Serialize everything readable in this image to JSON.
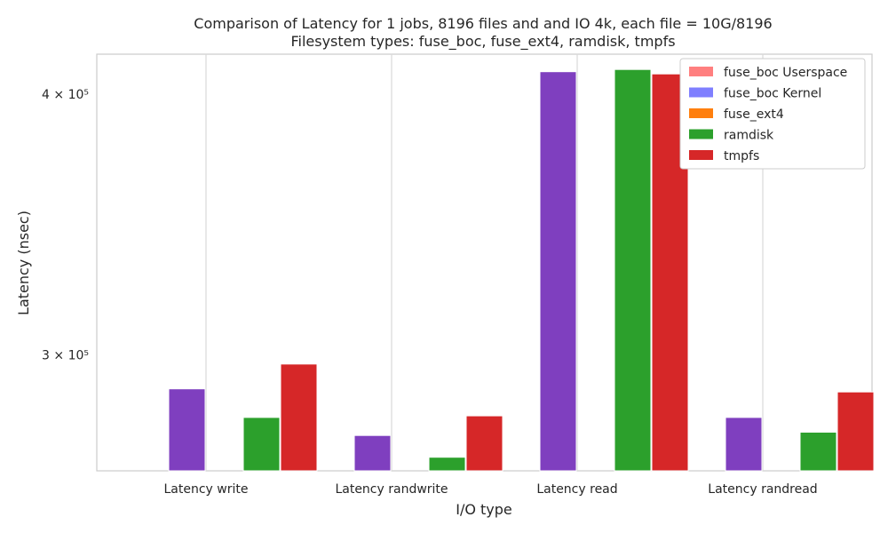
{
  "chart_data": {
    "type": "bar",
    "title": "Comparison of Latency for 1 jobs, 8196 files and  and IO 4k, each file = 10G/8196",
    "subtitle": "Filesystem types: fuse_boc, fuse_ext4, ramdisk, tmpfs",
    "xlabel": "I/O type",
    "ylabel": "Latency (nsec)",
    "yscale": "log",
    "ylim": [
      264000,
      418000
    ],
    "yticks": [
      {
        "value": 300000,
        "label": "3 × 10⁵"
      },
      {
        "value": 400000,
        "label": "4 × 10⁵"
      }
    ],
    "categories": [
      "Latency write",
      "Latency randwrite",
      "Latency read",
      "Latency randread"
    ],
    "series": [
      {
        "name": "fuse_boc Userspace",
        "color": "#ff7f7f",
        "values": [
          null,
          null,
          null,
          null
        ]
      },
      {
        "name": "fuse_boc Kernel",
        "color": "#7f7fff",
        "values": [
          null,
          null,
          null,
          null
        ]
      },
      {
        "name": "fuse_boc",
        "color": "#7f3fbf",
        "values": [
          289000,
          274500,
          410000,
          280000
        ]
      },
      {
        "name": "fuse_ext4",
        "color": "#ff7f0e",
        "values": [
          null,
          null,
          null,
          null
        ]
      },
      {
        "name": "ramdisk",
        "color": "#2ca02c",
        "values": [
          280000,
          268000,
          411000,
          275500
        ]
      },
      {
        "name": "tmpfs",
        "color": "#d62728",
        "values": [
          297000,
          280500,
          409000,
          288000
        ]
      }
    ],
    "legend": {
      "position": "top-right",
      "entries": [
        {
          "label": "fuse_boc Userspace",
          "color": "#ff7f7f"
        },
        {
          "label": "fuse_boc Kernel",
          "color": "#7f7fff"
        },
        {
          "label": "fuse_ext4",
          "color": "#ff7f0e"
        },
        {
          "label": "ramdisk",
          "color": "#2ca02c"
        },
        {
          "label": "tmpfs",
          "color": "#d62728"
        }
      ]
    },
    "grid": {
      "x": true,
      "y": false
    }
  }
}
